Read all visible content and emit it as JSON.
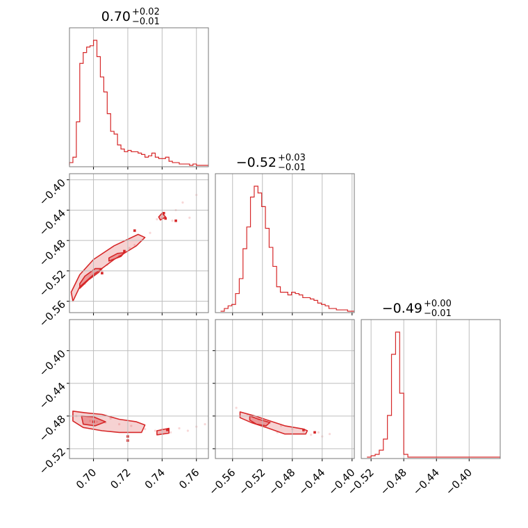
{
  "figure": {
    "type": "corner-plot",
    "accent_color": "#d62728",
    "grid": true
  },
  "chart_data": [
    {
      "type": "histogram",
      "panel": "p00",
      "parameter_index": 0,
      "title": {
        "median": "0.70",
        "upper": "+0.02",
        "lower": "−0.01"
      },
      "xlim": [
        0.686,
        0.767
      ],
      "xticks": [
        0.7,
        0.72,
        0.74,
        0.76
      ],
      "x_tick_labels": [],
      "bins_x": [
        0.686,
        0.688,
        0.69,
        0.692,
        0.694,
        0.696,
        0.698,
        0.7,
        0.702,
        0.704,
        0.706,
        0.708,
        0.71,
        0.712,
        0.714,
        0.716,
        0.718,
        0.72,
        0.722,
        0.724,
        0.726,
        0.728,
        0.73,
        0.732,
        0.734,
        0.736,
        0.738,
        0.74,
        0.742,
        0.744,
        0.746,
        0.748,
        0.75,
        0.752,
        0.754,
        0.756,
        0.758,
        0.76,
        0.762,
        0.764,
        0.767
      ],
      "counts": [
        0.02,
        0.06,
        0.32,
        0.75,
        0.83,
        0.87,
        0.88,
        0.92,
        0.8,
        0.65,
        0.54,
        0.38,
        0.25,
        0.23,
        0.15,
        0.12,
        0.1,
        0.11,
        0.1,
        0.1,
        0.09,
        0.08,
        0.06,
        0.07,
        0.09,
        0.06,
        0.05,
        0.05,
        0.06,
        0.03,
        0.02,
        0.02,
        0.01,
        0.01,
        0.01,
        0.0,
        0.01,
        0.0,
        0.0,
        0.0
      ]
    },
    {
      "type": "histogram",
      "panel": "p11",
      "parameter_index": 1,
      "title": {
        "median": "−0.52",
        "upper": "+0.03",
        "lower": "−0.01"
      },
      "xlim": [
        -0.583,
        -0.397
      ],
      "xticks": [
        -0.56,
        -0.52,
        -0.48,
        -0.44,
        -0.4
      ],
      "x_tick_labels": [],
      "bins_x": [
        -0.576,
        -0.571,
        -0.566,
        -0.561,
        -0.556,
        -0.551,
        -0.546,
        -0.541,
        -0.536,
        -0.531,
        -0.526,
        -0.521,
        -0.516,
        -0.511,
        -0.506,
        -0.501,
        -0.496,
        -0.491,
        -0.486,
        -0.481,
        -0.476,
        -0.471,
        -0.466,
        -0.461,
        -0.456,
        -0.451,
        -0.446,
        -0.441,
        -0.436,
        -0.431,
        -0.426,
        -0.421,
        -0.416,
        -0.411,
        -0.406,
        -0.401,
        -0.397
      ],
      "counts": [
        0.0,
        0.02,
        0.04,
        0.05,
        0.13,
        0.24,
        0.46,
        0.62,
        0.84,
        0.92,
        0.87,
        0.77,
        0.61,
        0.47,
        0.33,
        0.18,
        0.14,
        0.14,
        0.12,
        0.14,
        0.13,
        0.12,
        0.1,
        0.1,
        0.09,
        0.08,
        0.06,
        0.05,
        0.04,
        0.02,
        0.02,
        0.01,
        0.01,
        0.01,
        0.0,
        0.0
      ]
    },
    {
      "type": "histogram",
      "panel": "p22",
      "parameter_index": 2,
      "title": {
        "median": "−0.49",
        "upper": "+0.00",
        "lower": "−0.01"
      },
      "xlim": [
        -0.532,
        -0.362
      ],
      "xticks": [
        -0.52,
        -0.48,
        -0.44,
        -0.4
      ],
      "x_tick_labels": [
        "−0.52",
        "−0.48",
        "−0.44",
        "−0.40"
      ],
      "bins_x": [
        -0.525,
        -0.52,
        -0.515,
        -0.51,
        -0.505,
        -0.5,
        -0.495,
        -0.49,
        -0.485,
        -0.48,
        -0.475,
        -0.47,
        -0.465,
        -0.46,
        -0.455,
        -0.45,
        -0.445,
        -0.44,
        -0.435,
        -0.43,
        -0.425,
        -0.42,
        -0.415,
        -0.41,
        -0.405,
        -0.4,
        -0.395,
        -0.39,
        -0.385,
        -0.38,
        -0.375,
        -0.37,
        -0.365,
        -0.362
      ],
      "counts": [
        0.0,
        0.01,
        0.02,
        0.05,
        0.13,
        0.3,
        0.74,
        0.9,
        0.46,
        0.02,
        0.0,
        0.0,
        0.0,
        0.0,
        0.0,
        0.0,
        0.0,
        0.0,
        0.0,
        0.0,
        0.0,
        0.0,
        0.0,
        0.0,
        0.0,
        0.0,
        0.0,
        0.0,
        0.0,
        0.0,
        0.0,
        0.0,
        0.0
      ]
    },
    {
      "type": "contour",
      "panel": "p10",
      "x_parameter": 0,
      "y_parameter": 1,
      "xlim": [
        0.686,
        0.767
      ],
      "ylim": [
        -0.575,
        -0.392
      ],
      "xticks": [
        0.7,
        0.72,
        0.74,
        0.76
      ],
      "yticks": [
        -0.56,
        -0.52,
        -0.48,
        -0.44,
        -0.4
      ],
      "x_tick_labels": [],
      "y_tick_labels": [
        "−0.56",
        "−0.52",
        "−0.48",
        "−0.44",
        "−0.40"
      ],
      "contours": [
        {
          "level": 0.39,
          "points": [
            [
              0.688,
              -0.56
            ],
            [
              0.692,
              -0.541
            ],
            [
              0.7,
              -0.525
            ],
            [
              0.712,
              -0.505
            ],
            [
              0.725,
              -0.487
            ],
            [
              0.73,
              -0.476
            ],
            [
              0.726,
              -0.472
            ],
            [
              0.712,
              -0.487
            ],
            [
              0.7,
              -0.505
            ],
            [
              0.692,
              -0.525
            ],
            [
              0.687,
              -0.548
            ],
            [
              0.688,
              -0.56
            ]
          ]
        },
        {
          "level": 0.86,
          "points": [
            [
              0.692,
              -0.543
            ],
            [
              0.697,
              -0.532
            ],
            [
              0.703,
              -0.522
            ],
            [
              0.705,
              -0.517
            ],
            [
              0.701,
              -0.517
            ],
            [
              0.695,
              -0.527
            ],
            [
              0.692,
              -0.537
            ],
            [
              0.692,
              -0.543
            ]
          ]
        },
        {
          "level": 0.86,
          "points": [
            [
              0.709,
              -0.507
            ],
            [
              0.716,
              -0.501
            ],
            [
              0.718,
              -0.496
            ],
            [
              0.714,
              -0.497
            ],
            [
              0.709,
              -0.503
            ],
            [
              0.709,
              -0.507
            ]
          ]
        },
        {
          "level": 0.86,
          "points": [
            [
              0.739,
              -0.453
            ],
            [
              0.742,
              -0.449
            ],
            [
              0.74,
              -0.444
            ],
            [
              0.738,
              -0.449
            ],
            [
              0.739,
              -0.453
            ]
          ]
        }
      ],
      "points": [
        [
          0.695,
          -0.537
        ],
        [
          0.701,
          -0.523
        ],
        [
          0.708,
          -0.512
        ],
        [
          0.715,
          -0.5
        ],
        [
          0.721,
          -0.49
        ],
        [
          0.728,
          -0.48
        ],
        [
          0.737,
          -0.452
        ],
        [
          0.74,
          -0.45
        ],
        [
          0.741,
          -0.444
        ],
        [
          0.746,
          -0.454
        ],
        [
          0.748,
          -0.44
        ],
        [
          0.752,
          -0.43
        ],
        [
          0.756,
          -0.45
        ],
        [
          0.76,
          -0.42
        ],
        [
          0.733,
          -0.47
        ],
        [
          0.724,
          -0.486
        ],
        [
          0.718,
          -0.496
        ],
        [
          0.705,
          -0.52
        ]
      ],
      "marks": [
        [
          0.741,
          -0.444
        ],
        [
          0.742,
          -0.451
        ],
        [
          0.748,
          -0.454
        ],
        [
          0.724,
          -0.467
        ],
        [
          0.718,
          -0.494
        ],
        [
          0.705,
          -0.523
        ]
      ]
    },
    {
      "type": "contour",
      "panel": "p20",
      "x_parameter": 0,
      "y_parameter": 2,
      "xlim": [
        0.686,
        0.767
      ],
      "ylim": [
        -0.532,
        -0.362
      ],
      "xticks": [
        0.7,
        0.72,
        0.74,
        0.76
      ],
      "yticks": [
        -0.52,
        -0.48,
        -0.44,
        -0.4
      ],
      "x_tick_labels": [
        "0.70",
        "0.72",
        "0.74",
        "0.76"
      ],
      "y_tick_labels": [
        "−0.52",
        "−0.48",
        "−0.44",
        "−0.40"
      ],
      "contours": [
        {
          "level": 0.39,
          "points": [
            [
              0.688,
              -0.474
            ],
            [
              0.695,
              -0.476
            ],
            [
              0.705,
              -0.478
            ],
            [
              0.715,
              -0.484
            ],
            [
              0.725,
              -0.487
            ],
            [
              0.73,
              -0.491
            ],
            [
              0.728,
              -0.5
            ],
            [
              0.715,
              -0.5
            ],
            [
              0.705,
              -0.498
            ],
            [
              0.694,
              -0.494
            ],
            [
              0.688,
              -0.486
            ],
            [
              0.688,
              -0.474
            ]
          ]
        },
        {
          "level": 0.86,
          "points": [
            [
              0.693,
              -0.48
            ],
            [
              0.7,
              -0.481
            ],
            [
              0.707,
              -0.487
            ],
            [
              0.701,
              -0.492
            ],
            [
              0.694,
              -0.49
            ],
            [
              0.693,
              -0.48
            ]
          ]
        },
        {
          "level": 0.86,
          "points": [
            [
              0.737,
              -0.498
            ],
            [
              0.744,
              -0.495
            ],
            [
              0.744,
              -0.501
            ],
            [
              0.737,
              -0.503
            ],
            [
              0.737,
              -0.498
            ]
          ]
        }
      ],
      "points": [
        [
          0.69,
          -0.48
        ],
        [
          0.698,
          -0.486
        ],
        [
          0.707,
          -0.488
        ],
        [
          0.715,
          -0.49
        ],
        [
          0.722,
          -0.492
        ],
        [
          0.73,
          -0.496
        ],
        [
          0.736,
          -0.498
        ],
        [
          0.74,
          -0.496
        ],
        [
          0.745,
          -0.5
        ],
        [
          0.75,
          -0.495
        ],
        [
          0.755,
          -0.498
        ],
        [
          0.76,
          -0.493
        ],
        [
          0.765,
          -0.49
        ],
        [
          0.71,
          -0.483
        ],
        [
          0.702,
          -0.487
        ]
      ],
      "marks": [
        [
          0.72,
          -0.505
        ],
        [
          0.72,
          -0.51
        ],
        [
          0.743,
          -0.497
        ],
        [
          0.7,
          -0.487
        ]
      ]
    },
    {
      "type": "contour",
      "panel": "p21",
      "x_parameter": 1,
      "y_parameter": 2,
      "xlim": [
        -0.583,
        -0.397
      ],
      "ylim": [
        -0.532,
        -0.362
      ],
      "xticks": [
        -0.56,
        -0.52,
        -0.48,
        -0.44,
        -0.4
      ],
      "yticks": [
        -0.52,
        -0.48,
        -0.44,
        -0.4
      ],
      "x_tick_labels": [
        "−0.56",
        "−0.52",
        "−0.48",
        "−0.44",
        "−0.40"
      ],
      "y_tick_labels": [],
      "contours": [
        {
          "level": 0.39,
          "points": [
            [
              -0.55,
              -0.475
            ],
            [
              -0.53,
              -0.48
            ],
            [
              -0.51,
              -0.486
            ],
            [
              -0.49,
              -0.492
            ],
            [
              -0.465,
              -0.496
            ],
            [
              -0.46,
              -0.498
            ],
            [
              -0.462,
              -0.502
            ],
            [
              -0.49,
              -0.502
            ],
            [
              -0.515,
              -0.494
            ],
            [
              -0.535,
              -0.488
            ],
            [
              -0.55,
              -0.482
            ],
            [
              -0.55,
              -0.475
            ]
          ]
        },
        {
          "level": 0.86,
          "points": [
            [
              -0.537,
              -0.48
            ],
            [
              -0.525,
              -0.484
            ],
            [
              -0.51,
              -0.488
            ],
            [
              -0.515,
              -0.492
            ],
            [
              -0.528,
              -0.49
            ],
            [
              -0.537,
              -0.485
            ],
            [
              -0.537,
              -0.48
            ]
          ]
        }
      ],
      "points": [
        [
          -0.555,
          -0.47
        ],
        [
          -0.54,
          -0.478
        ],
        [
          -0.525,
          -0.484
        ],
        [
          -0.51,
          -0.488
        ],
        [
          -0.495,
          -0.492
        ],
        [
          -0.48,
          -0.496
        ],
        [
          -0.465,
          -0.499
        ],
        [
          -0.455,
          -0.503
        ],
        [
          -0.445,
          -0.5
        ],
        [
          -0.44,
          -0.505
        ],
        [
          -0.43,
          -0.502
        ],
        [
          -0.5,
          -0.5
        ],
        [
          -0.52,
          -0.492
        ]
      ],
      "marks": [
        [
          -0.465,
          -0.497
        ],
        [
          -0.45,
          -0.5
        ]
      ]
    }
  ]
}
